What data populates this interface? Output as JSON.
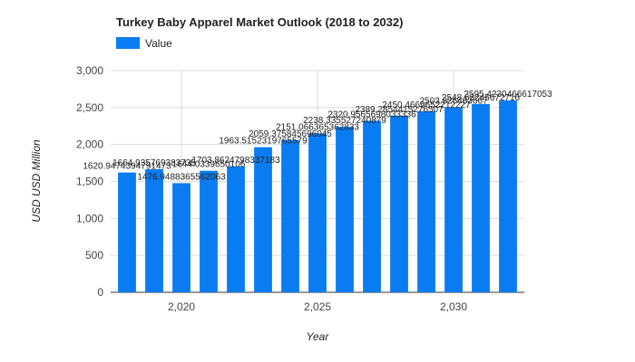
{
  "chart_data": {
    "type": "bar",
    "title": "Turkey Baby Apparel Market Outlook (2018 to 2032)",
    "xlabel": "Year",
    "ylabel": "USD USD Million",
    "legend": {
      "position": "top-left",
      "entries": [
        "Value"
      ]
    },
    "grid": true,
    "ylim": [
      0,
      3000
    ],
    "yticks": [
      0,
      500,
      1000,
      1500,
      2000,
      2500,
      3000
    ],
    "ytick_labels": [
      "0",
      "500",
      "1,000",
      "1,500",
      "2,000",
      "2,500",
      "3,000"
    ],
    "xlim": [
      2017.4,
      2032.6
    ],
    "xticks": [
      2020,
      2025,
      2030
    ],
    "xtick_labels": [
      "2,020",
      "2,025",
      "2,030"
    ],
    "series": [
      {
        "name": "Value",
        "color": "#0a7cf2",
        "x": [
          2018,
          2019,
          2020,
          2021,
          2022,
          2023,
          2024,
          2025,
          2026,
          2027,
          2028,
          2029,
          2030,
          2031,
          2032
        ],
        "values": [
          1620.9474394791473,
          1664.935769383735,
          1476.9488365562063,
          1644.0339650106,
          1703.8624798337182,
          1963.515231976558,
          2059.375845696045,
          2151.066365362833,
          2238.335527240879,
          2320.9565698033334,
          2389.2854415276506,
          2450.466965221223,
          2503.926483667,
          2548.63245672716,
          2595.4230466617055
        ],
        "labels": [
          "1620.9474394791473",
          "1664.935769383735",
          "1476.9488365562063",
          "1644.0339650106",
          "1703.8624798337183",
          "1963.5152319765579",
          "2059.375845696045",
          "2151.066365362833",
          "2238.335527240879",
          "2320.9565698033336",
          "2389.2854415276507",
          "2450.4669652212227",
          "2503.926483667",
          "2548.63245672716",
          "2595.4230466617053"
        ]
      }
    ]
  }
}
